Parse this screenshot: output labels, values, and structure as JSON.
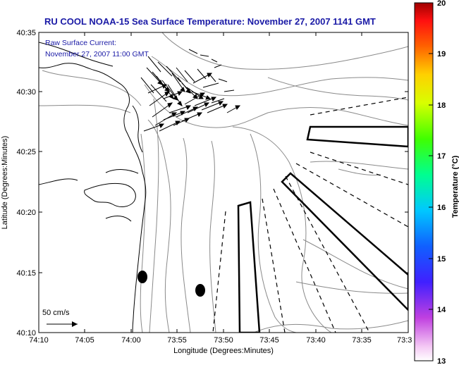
{
  "title": "RU COOL  NOAA-15  Sea Surface Temperature:  November 27, 2007 1141 GMT",
  "annotation": {
    "line1": "Raw Surface Current:",
    "line2": "November 27, 2007 11:00 GMT"
  },
  "axes": {
    "xlabel": "Longitude (Degrees:Minutes)",
    "ylabel": "Latitude (Degrees:Minutes)",
    "xticks": [
      "74:10",
      "74:05",
      "74:00",
      "73:55",
      "73:50",
      "73:45",
      "73:40",
      "73:35",
      "73:3"
    ],
    "yticks": [
      "40:35",
      "40:30",
      "40:25",
      "40:20",
      "40:15",
      "40:10"
    ]
  },
  "colorbar": {
    "label": "Temperature (°C)",
    "ticks": [
      "20",
      "19",
      "18",
      "17",
      "16",
      "15",
      "14",
      "13"
    ],
    "range": [
      13,
      20
    ]
  },
  "scale_label": "50 cm/s",
  "colors": {
    "title": "#1a1aa6",
    "annotation": "#1a1aa6",
    "contour": "#8a8a8a",
    "coast": "#000000"
  }
}
